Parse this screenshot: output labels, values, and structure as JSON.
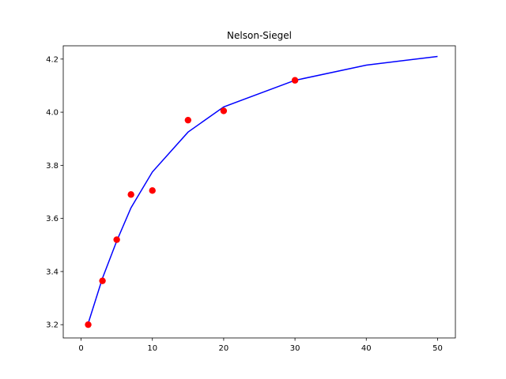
{
  "chart_data": {
    "type": "scatter",
    "title": "Nelson-Siegel",
    "xlabel": "",
    "ylabel": "",
    "xlim": [
      -2.5,
      52.5
    ],
    "ylim": [
      3.15,
      4.25
    ],
    "grid": false,
    "x_ticks": [
      0,
      10,
      20,
      30,
      40,
      50
    ],
    "y_ticks": [
      3.2,
      3.4,
      3.6,
      3.8,
      4.0,
      4.2
    ],
    "x_tick_labels": [
      "0",
      "10",
      "20",
      "30",
      "40",
      "50"
    ],
    "y_tick_labels": [
      "3.2",
      "3.4",
      "3.6",
      "3.8",
      "4.0",
      "4.2"
    ],
    "series": [
      {
        "kind": "line",
        "color": "#0000ff",
        "x": [
          1,
          3,
          5,
          7,
          10,
          15,
          20,
          30,
          40,
          50
        ],
        "y": [
          3.205,
          3.375,
          3.515,
          3.64,
          3.775,
          3.925,
          4.02,
          4.12,
          4.177,
          4.21
        ]
      },
      {
        "kind": "scatter",
        "color": "#ff0000",
        "x": [
          1,
          3,
          5,
          7,
          10,
          15,
          20,
          30
        ],
        "y": [
          3.2,
          3.365,
          3.52,
          3.69,
          3.705,
          3.97,
          4.005,
          4.12
        ]
      }
    ]
  }
}
